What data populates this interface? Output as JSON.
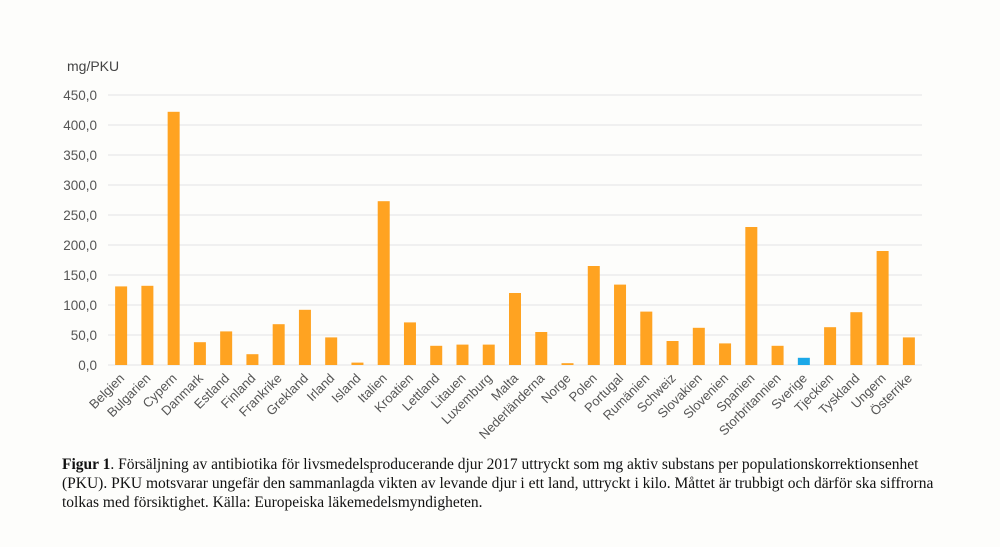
{
  "chart_data": {
    "type": "bar",
    "ylabel": "mg/PKU",
    "ylim": [
      0,
      450
    ],
    "ytick_step": 50,
    "ytick_labels": [
      "0,0",
      "50,0",
      "100,0",
      "150,0",
      "200,0",
      "250,0",
      "300,0",
      "350,0",
      "400,0",
      "450,0"
    ],
    "grid": true,
    "categories": [
      "Belgien",
      "Bulgarien",
      "Cypern",
      "Danmark",
      "Estland",
      "Finland",
      "Frankrike",
      "Grekland",
      "Irland",
      "Island",
      "Italien",
      "Kroatien",
      "Lettland",
      "Litauen",
      "Luxemburg",
      "Malta",
      "Nederländerna",
      "Norge",
      "Polen",
      "Portugal",
      "Rumänien",
      "Schweiz",
      "Slovakien",
      "Slovenien",
      "Spanien",
      "Storbritannien",
      "Sverige",
      "Tjeckien",
      "Tyskland",
      "Ungern",
      "Österrike"
    ],
    "values": [
      131,
      132,
      422,
      38,
      56,
      18,
      68,
      92,
      46,
      4,
      273,
      71,
      32,
      34,
      34,
      120,
      55,
      3,
      165,
      134,
      89,
      40,
      62,
      36,
      230,
      32,
      12,
      63,
      88,
      190,
      46
    ],
    "highlight": "Sverige",
    "colors": {
      "bar": "#FFA321",
      "highlight": "#1BA8E8",
      "grid": "#e4e4e4",
      "text": "#555555"
    }
  },
  "caption": {
    "label": "Figur 1",
    "text": ". Försäljning av antibiotika för livsmedelsproducerande djur 2017 uttryckt som mg aktiv substans per populationskorrektionsenhet (PKU). PKU motsvarar ungefär den sammanlagda vikten av levande djur i ett land, uttryckt i kilo. Måttet är trubbigt och därför ska siffrorna tolkas med försiktighet.  Källa: Europeiska läkemedelsmyndigheten."
  }
}
